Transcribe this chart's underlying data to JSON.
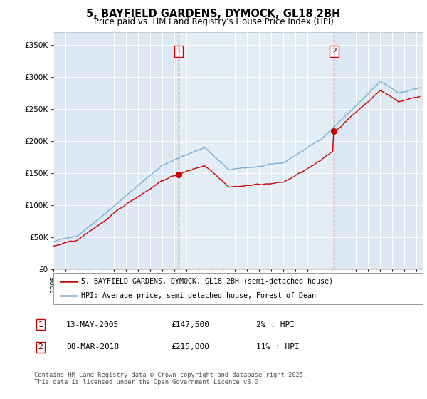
{
  "title": "5, BAYFIELD GARDENS, DYMOCK, GL18 2BH",
  "subtitle": "Price paid vs. HM Land Registry's House Price Index (HPI)",
  "ylabel_ticks": [
    "£0",
    "£50K",
    "£100K",
    "£150K",
    "£200K",
    "£250K",
    "£300K",
    "£350K"
  ],
  "ytick_values": [
    0,
    50000,
    100000,
    150000,
    200000,
    250000,
    300000,
    350000
  ],
  "ylim": [
    0,
    370000
  ],
  "xlim_start": 1995.0,
  "xlim_end": 2025.5,
  "bg_color": "#dce9f5",
  "line_color_hpi": "#7ab0d4",
  "line_color_price": "#cc0000",
  "transaction1_x": 2005.36,
  "transaction1_y": 147500,
  "transaction2_x": 2018.18,
  "transaction2_y": 215000,
  "legend_label1": "5, BAYFIELD GARDENS, DYMOCK, GL18 2BH (semi-detached house)",
  "legend_label2": "HPI: Average price, semi-detached house, Forest of Dean",
  "note1_label": "1",
  "note1_date": "13-MAY-2005",
  "note1_price": "£147,500",
  "note1_hpi": "2% ↓ HPI",
  "note2_label": "2",
  "note2_date": "08-MAR-2018",
  "note2_price": "£215,000",
  "note2_hpi": "11% ↑ HPI",
  "footer": "Contains HM Land Registry data © Crown copyright and database right 2025.\nThis data is licensed under the Open Government Licence v3.0."
}
